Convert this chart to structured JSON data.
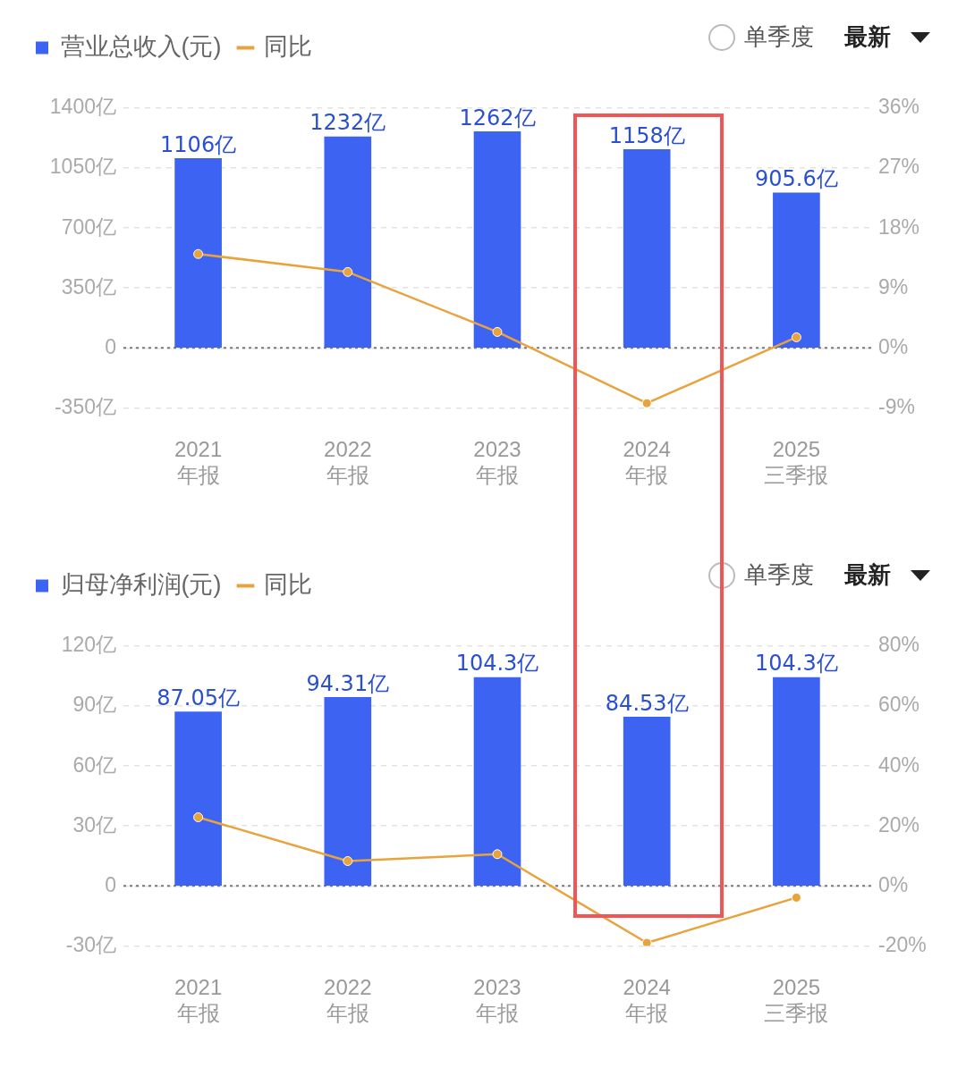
{
  "chart_data": [
    {
      "type": "bar",
      "categories": [
        "2021\n年报",
        "2022\n年报",
        "2023\n年报",
        "2024\n年报",
        "2025\n三季报"
      ],
      "legend": "top left",
      "grid": "y",
      "data_labels": false,
      "annotations": [
        "单季度",
        "最新"
      ],
      "series": [
        {
          "name": "营业总收入(元)",
          "color": "#3d63f2",
          "values": [
            1106,
            1232,
            1262,
            1158,
            905.6
          ],
          "value_labels": [
            "1106亿",
            "1232亿",
            "1262亿",
            "1158亿",
            "905.6亿"
          ]
        },
        {
          "name": "同比",
          "type": "line",
          "axis": "y2",
          "color": "#e8a33d",
          "marker": "circle",
          "values": [
            14.1,
            11.4,
            2.4,
            -8.3,
            1.6
          ]
        }
      ],
      "ylim": [
        -350,
        1400
      ],
      "yticks": [
        {
          "value": -350,
          "label": "-350亿"
        },
        {
          "value": 0,
          "label": "0"
        },
        {
          "value": 350,
          "label": "350亿"
        },
        {
          "value": 700,
          "label": "700亿"
        },
        {
          "value": 1050,
          "label": "1050亿"
        },
        {
          "value": 1400,
          "label": "1400亿"
        }
      ],
      "ref_lines": [
        {
          "axis": "y",
          "value": 0,
          "color": "#777777",
          "line_style": "dotted"
        }
      ],
      "y2lim": [
        -9,
        36
      ],
      "y2ticks": [
        {
          "value": -9,
          "label": "-9%"
        },
        {
          "value": 0,
          "label": "0%"
        },
        {
          "value": 9,
          "label": "9%"
        },
        {
          "value": 18,
          "label": "18%"
        },
        {
          "value": 27,
          "label": "27%"
        },
        {
          "value": 36,
          "label": "36%"
        }
      ]
    },
    {
      "type": "bar",
      "categories": [
        "2021\n年报",
        "2022\n年报",
        "2023\n年报",
        "2024\n年报",
        "2025\n三季报"
      ],
      "legend": "top left",
      "grid": "y",
      "data_labels": false,
      "annotations": [
        "单季度",
        "最新"
      ],
      "series": [
        {
          "name": "归母净利润(元)",
          "color": "#3d63f2",
          "values": [
            87.05,
            94.31,
            104.3,
            84.53,
            104.3
          ],
          "value_labels": [
            "87.05亿",
            "94.31亿",
            "104.3亿",
            "84.53亿",
            "104.3亿"
          ]
        },
        {
          "name": "同比",
          "type": "line",
          "axis": "y2",
          "color": "#e8a33d",
          "marker": "circle",
          "values": [
            22.9,
            8.3,
            10.6,
            -19,
            -3.9
          ]
        }
      ],
      "ylim": [
        -30,
        120
      ],
      "yticks": [
        {
          "value": -30,
          "label": "-30亿"
        },
        {
          "value": 0,
          "label": "0"
        },
        {
          "value": 30,
          "label": "30亿"
        },
        {
          "value": 60,
          "label": "60亿"
        },
        {
          "value": 90,
          "label": "90亿"
        },
        {
          "value": 120,
          "label": "120亿"
        }
      ],
      "ref_lines": [
        {
          "axis": "y",
          "value": 0,
          "color": "#777777",
          "line_style": "dotted"
        }
      ],
      "y2lim": [
        -20,
        80
      ],
      "y2ticks": [
        {
          "value": -20,
          "label": "-20%"
        },
        {
          "value": 0,
          "label": "0%"
        },
        {
          "value": 20,
          "label": "20%"
        },
        {
          "value": 40,
          "label": "40%"
        },
        {
          "value": 60,
          "label": "60%"
        },
        {
          "value": 80,
          "label": "80%"
        }
      ]
    }
  ]
}
